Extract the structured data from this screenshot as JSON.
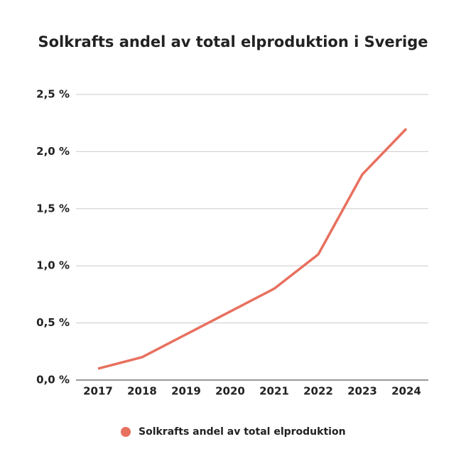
{
  "chart_data": {
    "type": "line",
    "title": "Solkrafts andel av total elproduktion i Sverige",
    "categories": [
      "2017",
      "2018",
      "2019",
      "2020",
      "2021",
      "2022",
      "2023",
      "2024"
    ],
    "series": [
      {
        "name": "Solkrafts andel av total elproduktion",
        "color": "#e8705f",
        "values": [
          0.1,
          0.2,
          0.4,
          0.6,
          0.8,
          1.1,
          1.8,
          2.2
        ]
      }
    ],
    "ylim": [
      0,
      2.5
    ],
    "yticks": [
      {
        "value": 0,
        "label": "0,0 %"
      },
      {
        "value": 0.5,
        "label": "0,5 %"
      },
      {
        "value": 1,
        "label": "1,0 %"
      },
      {
        "value": 1.5,
        "label": "1,5 %"
      },
      {
        "value": 2,
        "label": "2,0 %"
      },
      {
        "value": 2.5,
        "label": "2,5 %"
      }
    ],
    "grid": true,
    "legend": "bottom"
  }
}
